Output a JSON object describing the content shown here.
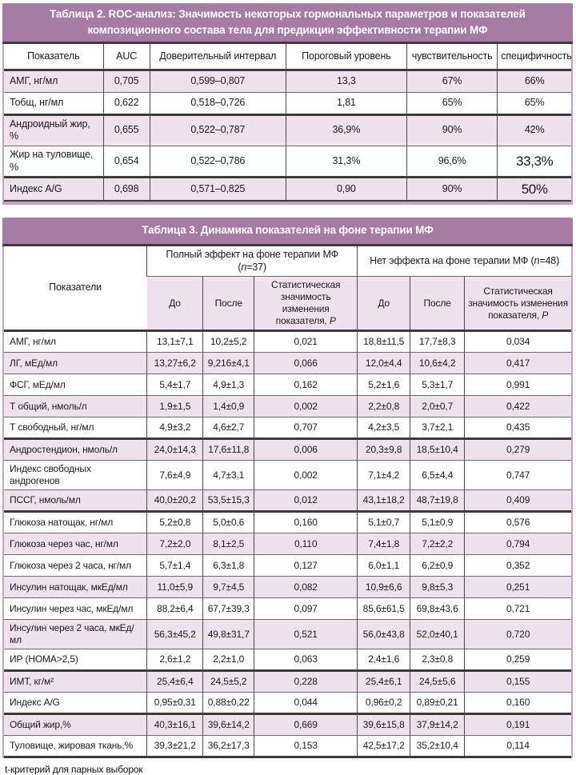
{
  "colors": {
    "header_purple": "#a77ca4",
    "row_pink": "#efe2ec",
    "frame_mauve": "#c9a0c6"
  },
  "table2": {
    "title": "Таблица 2. ROC-анализ: Значимость некоторых гормональных параметров и показателей композиционного состава тела для предикции эффективности терапии МФ",
    "headers": [
      "Показатель",
      "AUC",
      "Доверительный интервал",
      "Пороговый уровень",
      "чувствительность",
      "специфичность"
    ],
    "rows": [
      {
        "cells": [
          "АМГ, нг/мл",
          "0,705",
          "0,599–0,807",
          "13,3",
          "67%",
          "66%"
        ]
      },
      {
        "cells": [
          "Тобщ, нг/мл",
          "0,622",
          "0,518–0,726",
          "1,81",
          "65%",
          "65%"
        ]
      },
      {
        "cells": [
          "Андроидный жир, %",
          "0,655",
          "0,522–0,787",
          "36,9%",
          "90%",
          "42%"
        ],
        "thick_top": true
      },
      {
        "cells": [
          "Жир на туловище, %",
          "0,654",
          "0,522–0,786",
          "31,3%",
          "96,6%",
          "33,3%"
        ],
        "large_last": true
      },
      {
        "cells": [
          "Индекс A/G",
          "0,698",
          "0,571–0,825",
          "0,90",
          "90%",
          "50%"
        ],
        "thick_top": true,
        "large_last": true
      }
    ]
  },
  "table3": {
    "title": "Таблица 3. Динамика показателей на фоне терапии МФ",
    "col_header": "Показатели",
    "group1": {
      "prefix": "Полный эффект на фоне терапии МФ (",
      "n": "n",
      "suffix": "=37)"
    },
    "group2": {
      "prefix": "Нет эффекта на фоне терапии МФ (",
      "n": "n",
      "suffix": "=48)"
    },
    "sub": {
      "before": "До",
      "after": "После",
      "stat_prefix": "Статистическая значимость изменения показателя,",
      "p": "P"
    },
    "rows": [
      {
        "cells": [
          "АМГ, нг/мл",
          "13,1±7,1",
          "10,2±5,2",
          "0,021",
          "18,8±11,5",
          "17,7±8,3",
          "0,034"
        ]
      },
      {
        "cells": [
          "ЛГ, мЕд/мл",
          "13,27±6,2",
          "9,216±4,1",
          "0,066",
          "12,0±4,4",
          "10,6±4,2",
          "0,417"
        ]
      },
      {
        "cells": [
          "ФСГ, мЕд/мл",
          "5,4±1,7",
          "4,9±1,3",
          "0,162",
          "5,2±1,6",
          "5,3±1,7",
          "0,991"
        ]
      },
      {
        "cells": [
          "Т общий, нмоль/л",
          "1,9±1,5",
          "1,4±0,9",
          "0,002",
          "2,2±0,8",
          "2,0±0,7",
          "0,422"
        ]
      },
      {
        "cells": [
          "Т свободный, нг/мл",
          "4,9±3,2",
          "4,6±2,7",
          "0,707",
          "4,2±3,5",
          "3,7±2,1",
          "0,435"
        ]
      },
      {
        "cells": [
          "Андростендион, нмоль/л",
          "24,0±14,3",
          "17,6±11,8",
          "0,006",
          "20,3±9,8",
          "18,5±10,4",
          "0,279"
        ],
        "thick_top": true
      },
      {
        "cells": [
          "Индекс свободных андрогенов",
          "7,6±4,9",
          "4,7±3,1",
          "0,002",
          "7,1±4,2",
          "6,5±4,4",
          "0,747"
        ]
      },
      {
        "cells": [
          "ПССГ, нмоль/мл",
          "40,0±20,2",
          "53,5±15,3",
          "0,012",
          "43,1±18,2",
          "48,7±19,8",
          "0,409"
        ]
      },
      {
        "cells": [
          "Глюкоза натощак, нг/мл",
          "5,2±0,8",
          "5,0±0,6",
          "0,160",
          "5,1±0,7",
          "5,1±0,9",
          "0,576"
        ],
        "thick_top": true
      },
      {
        "cells": [
          "Глюкоза через час, нг/мл",
          "7,2±2,0",
          "8,1±2,5",
          "0,110",
          "7,4±1,8",
          "7,2±2,2",
          "0,794"
        ]
      },
      {
        "cells": [
          "Глюкоза через 2 часа, нг/мл",
          "5,7±1,4",
          "6,3±1,8",
          "0,127",
          "6,0±1,1",
          "6,2±0,9",
          "0,352"
        ]
      },
      {
        "cells": [
          "Инсулин натощак, мкЕд/мл",
          "11,0±5,9",
          "9,7±4,5",
          "0,082",
          "10,9±6,6",
          "9,8±5,3",
          "0,251"
        ]
      },
      {
        "cells": [
          "Инсулин через час, мкЕд/мл",
          "88,2±6,4",
          "67,7±39,3",
          "0,097",
          "85,6±61,5",
          "69,8±43,6",
          "0,721"
        ]
      },
      {
        "cells": [
          "Инсулин через 2 часа, мкЕд/мл",
          "56,3±45,2",
          "49,8±31,7",
          "0,521",
          "56,0±43,8",
          "52,0±40,1",
          "0,720"
        ]
      },
      {
        "cells": [
          "ИР (HOMA>2,5)",
          "2,6±1,2",
          "2,2±1,0",
          "0,063",
          "2,4±1,6",
          "2,3±0,8",
          "0,259"
        ]
      },
      {
        "cells": [
          "ИМТ, кг/м²",
          "25,4±6,4",
          "24,5±5,2",
          "0,228",
          "25,4±6,1",
          "24,5±5,6",
          "0,155"
        ],
        "thick_top": true
      },
      {
        "cells": [
          "Индекс A/G",
          "0,95±0,31",
          "0,88±0,22",
          "0,044",
          "0,96±0,2",
          "0,89±0,21",
          "0,160"
        ]
      },
      {
        "cells": [
          "Общий жир,%",
          "40,3±16,1",
          "39,6±14,2",
          "0,669",
          "39,6±15,8",
          "37,9±14,2",
          "0,191"
        ],
        "thick_top": true
      },
      {
        "cells": [
          "Туловище, жировая ткань,%",
          "39,3±21,2",
          "36,2±17,3",
          "0,153",
          "42,5±17,2",
          "35,2±10,4",
          "0,114"
        ]
      }
    ]
  },
  "footnote": "t-критерий для парных выборок"
}
